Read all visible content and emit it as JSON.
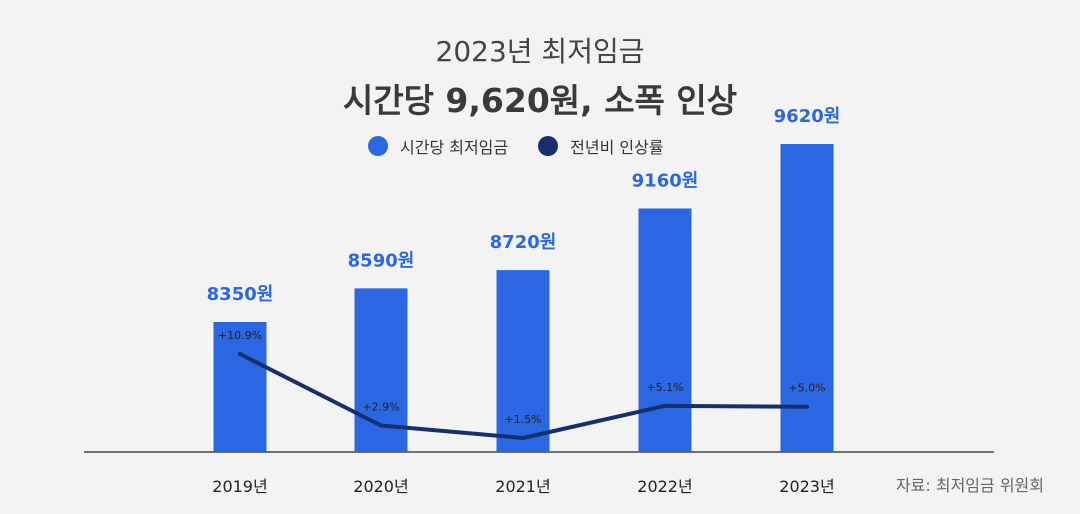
{
  "title": "2023년 최저임금",
  "subtitle": "시간당 9,620원, 소폭 인상",
  "source": "자료: 최저임금 위원회",
  "colors": {
    "bar": "#2c67e3",
    "line": "#16306d",
    "bar_label": "#2c67e3",
    "background": "#f3f3f3"
  },
  "chart_data": {
    "type": "bar",
    "categories": [
      "2019년",
      "2020년",
      "2021년",
      "2022년",
      "2023년"
    ],
    "series": [
      {
        "name": "시간당 최저임금",
        "type": "bar",
        "values": [
          8350,
          8590,
          8720,
          9160,
          9620
        ],
        "labels": [
          "8350원",
          "8590원",
          "8720원",
          "9160원",
          "9620원"
        ]
      },
      {
        "name": "전년비 인상률",
        "type": "line",
        "values": [
          10.9,
          2.9,
          1.5,
          5.1,
          5.0
        ],
        "labels": [
          "+10.9%",
          "+2.9%",
          "+1.5%",
          "+5.1%",
          "+5.0%"
        ]
      }
    ],
    "legend": "top-center",
    "grid": false
  }
}
